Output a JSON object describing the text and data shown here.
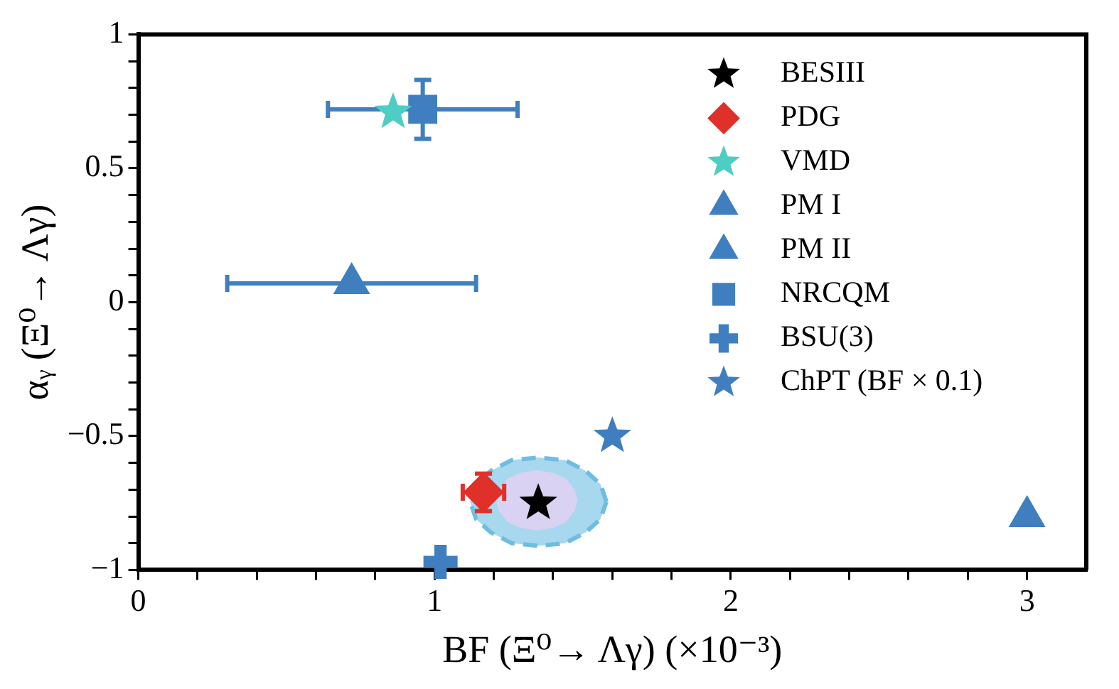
{
  "chart_data": {
    "type": "scatter",
    "xlabel": "BF (Ξ⁰→ Λγ) (×10⁻³)",
    "ylabel": "αᵧ (Ξ⁰→ Λγ)",
    "xlim": [
      0,
      3.2
    ],
    "ylim": [
      -1,
      1
    ],
    "xticks": [
      0,
      {
        "value": 0.2,
        "label": null
      },
      {
        "value": 0.4,
        "label": null
      },
      {
        "value": 0.6,
        "label": null
      },
      {
        "value": 0.8,
        "label": null
      },
      1,
      {
        "value": 1.2,
        "label": null
      },
      {
        "value": 1.4,
        "label": null
      },
      {
        "value": 1.6,
        "label": null
      },
      {
        "value": 1.8,
        "label": null
      },
      2,
      {
        "value": 2.2,
        "label": null
      },
      {
        "value": 2.4,
        "label": null
      },
      {
        "value": 2.6,
        "label": null
      },
      {
        "value": 2.8,
        "label": null
      },
      3
    ],
    "yticks": [
      {
        "value": -1,
        "label": "−1"
      },
      {
        "value": -0.9,
        "label": null
      },
      {
        "value": -0.8,
        "label": null
      },
      {
        "value": -0.7,
        "label": null
      },
      {
        "value": -0.6,
        "label": null
      },
      {
        "value": -0.5,
        "label": "−0.5"
      },
      {
        "value": -0.4,
        "label": null
      },
      {
        "value": -0.3,
        "label": null
      },
      {
        "value": -0.2,
        "label": null
      },
      {
        "value": -0.1,
        "label": null
      },
      0,
      {
        "value": 0.1,
        "label": null
      },
      {
        "value": 0.2,
        "label": null
      },
      {
        "value": 0.3,
        "label": null
      },
      {
        "value": 0.4,
        "label": null
      },
      0.5,
      {
        "value": 0.6,
        "label": null
      },
      {
        "value": 0.7,
        "label": null
      },
      {
        "value": 0.8,
        "label": null
      },
      {
        "value": 0.9,
        "label": null
      },
      1
    ],
    "grid": false,
    "legend": "top right",
    "series": [
      {
        "name": "BESIII",
        "color": "#000000",
        "marker": "star",
        "x": [
          1.35
        ],
        "values": [
          -0.75
        ]
      },
      {
        "name": "PDG",
        "color": "#e0302a",
        "marker": "diamond",
        "x": [
          1.165
        ],
        "values": [
          -0.71
        ],
        "errors": [
          0.07
        ],
        "xerrors": [
          0.07
        ]
      },
      {
        "name": "VMD",
        "color": "#4ecdc4",
        "marker": "star",
        "x": [
          0.86
        ],
        "values": [
          0.71
        ]
      },
      {
        "name": "PM I",
        "color": "#3f7fbf",
        "marker": "triangle",
        "x": [
          3.0
        ],
        "values": [
          -0.8
        ]
      },
      {
        "name": "PM II",
        "color": "#3f7fbf",
        "marker": "triangle",
        "x": [
          0.72
        ],
        "values": [
          0.07
        ],
        "xerrors": [
          0.42
        ]
      },
      {
        "name": "NRCQM",
        "color": "#3f7fbf",
        "marker": "square",
        "x": [
          0.96
        ],
        "values": [
          0.72
        ],
        "errors": [
          0.11
        ],
        "xerrors": [
          0.32
        ]
      },
      {
        "name": "BSU(3)",
        "color": "#3f7fbf",
        "marker": "cross",
        "x": [
          1.02
        ],
        "values": [
          -0.97
        ]
      },
      {
        "name": "ChPT (BF × 0.1)",
        "color": "#3f7fbf",
        "marker": "star",
        "x": [
          1.6
        ],
        "values": [
          -0.5
        ]
      },
      {
        "type": "area",
        "color": "#a8d8ee",
        "line_style": "dashed",
        "x": [
          1.58,
          1.56,
          1.51,
          1.44,
          1.35,
          1.26,
          1.19,
          1.14,
          1.12,
          1.14,
          1.19,
          1.26,
          1.35,
          1.44,
          1.51,
          1.56,
          1.58
        ],
        "values": [
          -0.745,
          -0.68,
          -0.63,
          -0.59,
          -0.58,
          -0.59,
          -0.63,
          -0.68,
          -0.745,
          -0.81,
          -0.86,
          -0.9,
          -0.91,
          -0.9,
          -0.86,
          -0.81,
          -0.745
        ]
      },
      {
        "type": "area",
        "color": "#d9d2f2",
        "x": [
          1.48,
          1.47,
          1.44,
          1.4,
          1.345,
          1.29,
          1.25,
          1.22,
          1.21,
          1.22,
          1.25,
          1.29,
          1.345,
          1.4,
          1.44,
          1.47,
          1.48
        ],
        "values": [
          -0.74,
          -0.7,
          -0.66,
          -0.64,
          -0.63,
          -0.64,
          -0.66,
          -0.7,
          -0.74,
          -0.78,
          -0.82,
          -0.84,
          -0.85,
          -0.84,
          -0.82,
          -0.78,
          -0.74
        ]
      }
    ]
  }
}
